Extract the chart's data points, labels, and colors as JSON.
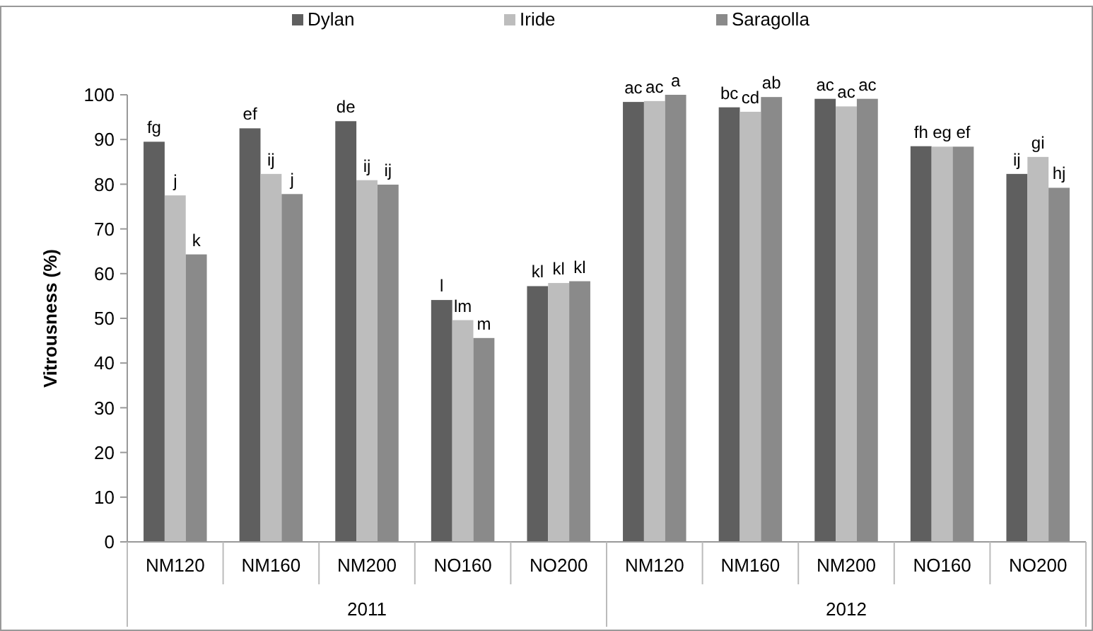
{
  "chart_data": {
    "type": "bar",
    "ylabel": "Vitrousness (%)",
    "categories": [
      "NM120",
      "NM160",
      "NM200",
      "NO160",
      "NO200",
      "NM120",
      "NM160",
      "NM200",
      "NO160",
      "NO200"
    ],
    "series": [
      {
        "name": "Dylan",
        "color": "#5f5f5f",
        "values": [
          89.5,
          92.5,
          94.1,
          54.1,
          57.2,
          98.4,
          97.2,
          99.1,
          88.5,
          82.3
        ],
        "value_labels": [
          "fg",
          "ef",
          "de",
          "l",
          "kl",
          "ac",
          "bc",
          "ac",
          "fh",
          "ij"
        ]
      },
      {
        "name": "Iride",
        "color": "#bdbdbd",
        "values": [
          77.5,
          82.3,
          80.9,
          49.6,
          57.9,
          98.6,
          96.2,
          97.4,
          88.4,
          86.1
        ],
        "value_labels": [
          "j",
          "ij",
          "ij",
          "lm",
          "kl",
          "ac",
          "cd",
          "ac",
          "eg",
          "gi"
        ]
      },
      {
        "name": "Saragolla",
        "color": "#8a8a8a",
        "values": [
          64.3,
          77.8,
          79.9,
          45.6,
          58.3,
          100,
          99.5,
          99.1,
          88.4,
          79.2
        ],
        "value_labels": [
          "k",
          "j",
          "ij",
          "m",
          "kl",
          "a",
          "ab",
          "ac",
          "ef",
          "hj"
        ]
      }
    ],
    "annotations": [
      "2011",
      "2012"
    ],
    "ylim": [
      0,
      100
    ],
    "yticks": [
      0,
      10,
      20,
      30,
      40,
      50,
      60,
      70,
      80,
      90,
      100
    ],
    "grid": false,
    "legend": "top"
  }
}
